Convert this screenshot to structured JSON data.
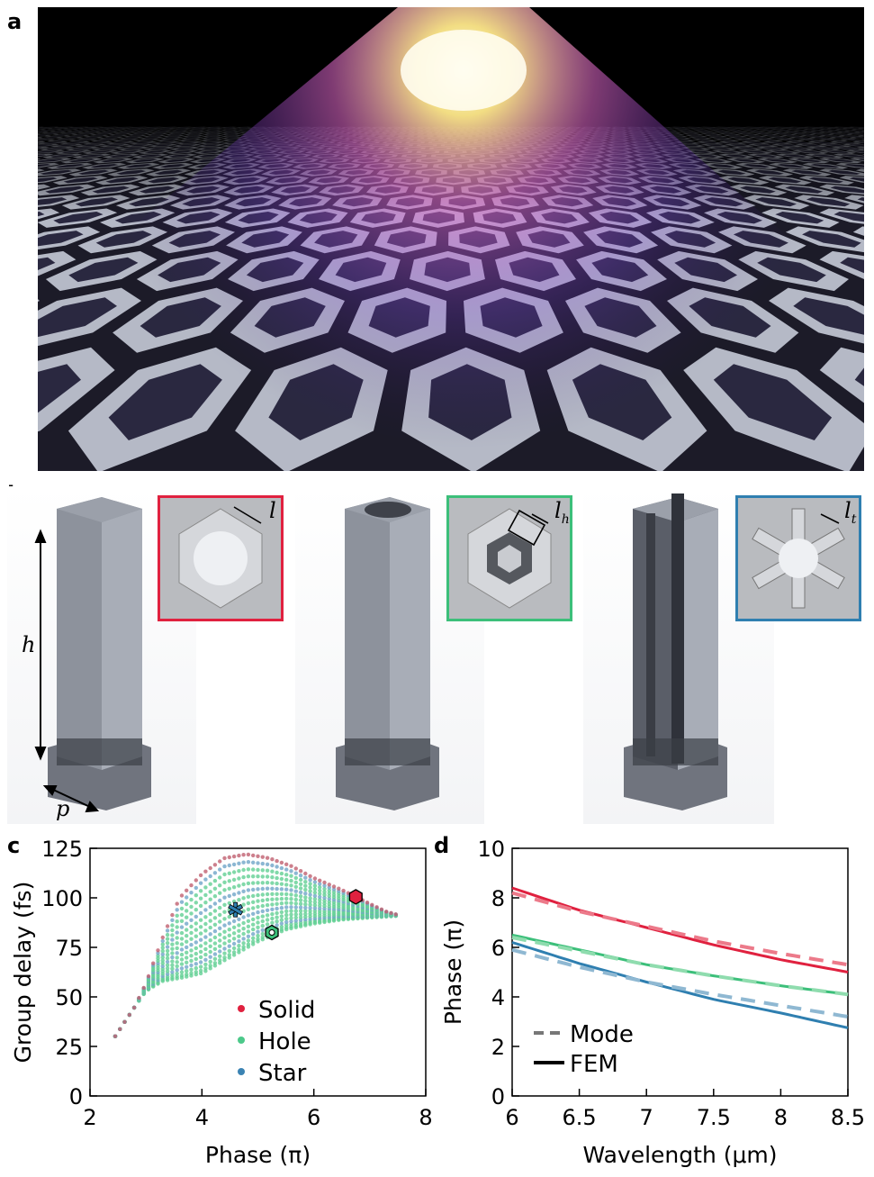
{
  "panels": {
    "a": "a",
    "b": "b",
    "c": "c",
    "d": "d"
  },
  "panel_b": {
    "h_label": "h",
    "p_label": "p",
    "l_label": "l",
    "lh_label": "l",
    "lh_sub": "h",
    "lt_label": "l",
    "lt_sub": "t",
    "colors": {
      "solid": "#e0213f",
      "hole": "#3cbf7a",
      "star": "#2f7fb0"
    }
  },
  "chart_data": [
    {
      "type": "scatter",
      "panel": "c",
      "xlabel": "Phase (π)",
      "ylabel": "Group delay (fs)",
      "xlim": [
        2,
        8
      ],
      "ylim": [
        0,
        125
      ],
      "xticks": [
        "2",
        "4",
        "6",
        "8"
      ],
      "yticks": [
        "0",
        "25",
        "50",
        "75",
        "100",
        "125"
      ],
      "legend": {
        "placement": "bottom-center",
        "entries": [
          {
            "name": "Solid",
            "color": "#e0213f"
          },
          {
            "name": "Hole",
            "color": "#4cc98a"
          },
          {
            "name": "Star",
            "color": "#3b83b3"
          }
        ]
      },
      "upper_envelope": [
        [
          2.4,
          28
        ],
        [
          2.8,
          45
        ],
        [
          3.0,
          57
        ],
        [
          3.3,
          80
        ],
        [
          3.6,
          100
        ],
        [
          4.0,
          112
        ],
        [
          4.4,
          120
        ],
        [
          4.8,
          122
        ],
        [
          5.2,
          120
        ],
        [
          5.6,
          116
        ],
        [
          6.0,
          110
        ],
        [
          6.5,
          104
        ],
        [
          7.0,
          97
        ],
        [
          7.3,
          93
        ],
        [
          7.55,
          91
        ]
      ],
      "lower_envelope": [
        [
          2.4,
          28
        ],
        [
          2.8,
          45
        ],
        [
          3.0,
          53
        ],
        [
          3.3,
          58
        ],
        [
          3.7,
          60
        ],
        [
          4.0,
          62
        ],
        [
          4.5,
          70
        ],
        [
          5.0,
          78
        ],
        [
          5.5,
          84
        ],
        [
          6.0,
          87
        ],
        [
          6.5,
          89
        ],
        [
          7.0,
          90
        ],
        [
          7.55,
          91
        ]
      ],
      "highlighted": [
        {
          "shape": "star",
          "x": 4.6,
          "y": 94,
          "color": "#2f7fb0"
        },
        {
          "shape": "hole",
          "x": 5.25,
          "y": 82.5,
          "color": "#3cbf7a"
        },
        {
          "shape": "solid",
          "x": 6.75,
          "y": 100.5,
          "color": "#e0213f"
        }
      ]
    },
    {
      "type": "line",
      "panel": "d",
      "xlabel": "Wavelength (μm)",
      "ylabel": "Phase (π)",
      "xlim": [
        6,
        8.5
      ],
      "ylim": [
        0,
        10
      ],
      "xticks": [
        "6",
        "6.5",
        "7",
        "7.5",
        "8",
        "8.5"
      ],
      "yticks": [
        "0",
        "2",
        "4",
        "6",
        "8",
        "10"
      ],
      "legend": {
        "placement": "bottom-left",
        "entries": [
          {
            "name": "Mode",
            "style": "dashed"
          },
          {
            "name": "FEM",
            "style": "solid"
          }
        ]
      },
      "x": [
        6,
        6.5,
        7,
        7.5,
        8,
        8.5
      ],
      "series": [
        {
          "name": "Solid FEM",
          "style": "solid",
          "color": "#e0213f",
          "values": [
            8.4,
            7.5,
            6.8,
            6.1,
            5.5,
            5.0
          ]
        },
        {
          "name": "Solid Mode",
          "style": "dashed",
          "color": "#ec7a8a",
          "values": [
            8.2,
            7.45,
            6.85,
            6.25,
            5.75,
            5.3
          ]
        },
        {
          "name": "Hole FEM",
          "style": "solid",
          "color": "#3cbf7a",
          "values": [
            6.5,
            5.9,
            5.3,
            4.85,
            4.45,
            4.1
          ]
        },
        {
          "name": "Hole Mode",
          "style": "dashed",
          "color": "#8fdcae",
          "values": [
            6.4,
            5.85,
            5.3,
            4.85,
            4.45,
            4.1
          ]
        },
        {
          "name": "Star FEM",
          "style": "solid",
          "color": "#2f7fb0",
          "values": [
            6.2,
            5.35,
            4.6,
            3.9,
            3.35,
            2.75
          ]
        },
        {
          "name": "Star Mode",
          "style": "dashed",
          "color": "#8fb8d2",
          "values": [
            5.9,
            5.2,
            4.6,
            4.1,
            3.65,
            3.2
          ]
        }
      ]
    }
  ]
}
